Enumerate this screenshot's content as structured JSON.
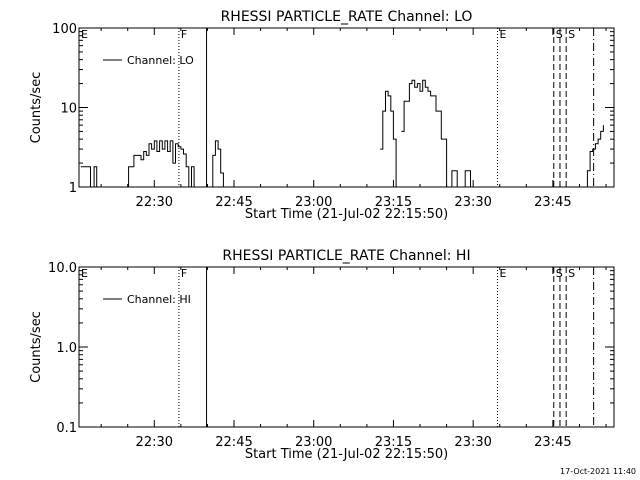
{
  "footer_stamp": "17-Oct-2021 11:40",
  "colors": {
    "background": "#ffffff",
    "ink": "#000000"
  },
  "chart_data": [
    {
      "type": "line",
      "title": "RHESSI PARTICLE_RATE Channel: LO",
      "xlabel": "Start Time (21-Jul-02 22:15:50)",
      "ylabel": "Counts/sec",
      "yscale": "log",
      "ylim": [
        1,
        100
      ],
      "xlim": [
        "22:15:50",
        "23:56:30"
      ],
      "xticks": [
        "22:30",
        "22:45",
        "23:00",
        "23:15",
        "23:30",
        "23:45"
      ],
      "yticks": [
        "1",
        "10",
        "100"
      ],
      "legend": {
        "position": "top-left",
        "label": "Channel: LO"
      },
      "series": [
        {
          "name": "Channel: LO",
          "x": [
            "22:15:50",
            "22:16:10",
            "22:17:00",
            "22:17:40",
            "22:18:00",
            "22:18:40",
            "22:19:10",
            "22:20:00",
            "22:22:30",
            "22:23:10",
            "22:24:00",
            "22:24:40",
            "22:25:10",
            "22:26:10",
            "22:27:30",
            "22:28:00",
            "22:28:30",
            "22:29:00",
            "22:29:30",
            "22:30:00",
            "22:30:30",
            "22:31:00",
            "22:31:30",
            "22:32:00",
            "22:32:30",
            "22:33:00",
            "22:33:30",
            "22:34:00",
            "22:34:30",
            "22:35:00",
            "22:35:30",
            "22:36:00",
            "22:36:30",
            "22:37:00",
            "22:37:30",
            "22:38:00",
            "22:38:30",
            "22:39:00",
            "22:40:00",
            "22:40:30",
            "22:41:00",
            "22:41:30",
            "22:42:00",
            "22:42:30",
            "22:43:00",
            "22:43:20",
            "23:12:00",
            "23:12:30",
            "23:13:00",
            "23:13:30",
            "23:14:00",
            "23:14:30",
            "23:15:00",
            "23:15:30",
            "23:16:00",
            "23:16:30",
            "23:17:00",
            "23:18:00",
            "23:18:30",
            "23:19:00",
            "23:19:30",
            "23:20:00",
            "23:20:30",
            "23:21:00",
            "23:21:30",
            "23:22:00",
            "23:23:00",
            "23:24:00",
            "23:25:00",
            "23:26:00",
            "23:27:00",
            "23:27:30",
            "23:28:00",
            "23:28:30",
            "23:29:30",
            "23:30:00",
            "23:50:30",
            "23:51:00",
            "23:51:30",
            "23:52:00",
            "23:52:30",
            "23:53:00",
            "23:53:30",
            "23:54:00",
            "23:54:30"
          ],
          "y": [
            null,
            1.8,
            1.8,
            1.8,
            1,
            1.8,
            1,
            null,
            1,
            null,
            null,
            1,
            1.8,
            2.5,
            2.2,
            2.8,
            2.5,
            3.5,
            3.0,
            3.8,
            2.8,
            3.8,
            3.0,
            3.8,
            2.8,
            3.8,
            2.0,
            3.5,
            3.2,
            3.0,
            2.6,
            1.8,
            1,
            1.8,
            1,
            null,
            null,
            null,
            null,
            1,
            2.5,
            3.8,
            3.0,
            1.5,
            1,
            null,
            null,
            3,
            9,
            16,
            14,
            9,
            4,
            1,
            null,
            5,
            12,
            20,
            22,
            18,
            20,
            16,
            22,
            18,
            16,
            14,
            9,
            4,
            1,
            1.6,
            1,
            null,
            1,
            1.6,
            1,
            null,
            null,
            1,
            1.6,
            2.8,
            3.0,
            3.5,
            4,
            5,
            6
          ]
        }
      ],
      "markers": [
        {
          "label": "E",
          "time": "22:15:50",
          "style": "dotted"
        },
        {
          "label": "F",
          "time": "22:34:38",
          "style": "dotted"
        },
        {
          "label": "",
          "time": "22:39:50",
          "style": "solid"
        },
        {
          "label": "E",
          "time": "23:34:35",
          "style": "dotted"
        },
        {
          "label": "S",
          "time": "23:45:10",
          "style": "dashed"
        },
        {
          "label": "",
          "time": "23:46:20",
          "style": "dashed"
        },
        {
          "label": "S",
          "time": "23:47:30",
          "style": "dashed"
        },
        {
          "label": "",
          "time": "23:52:40",
          "style": "dashdot"
        }
      ]
    },
    {
      "type": "line",
      "title": "RHESSI PARTICLE_RATE Channel: HI",
      "xlabel": "Start Time (21-Jul-02 22:15:50)",
      "ylabel": "Counts/sec",
      "yscale": "log",
      "ylim": [
        0.1,
        10
      ],
      "xlim": [
        "22:15:50",
        "23:56:30"
      ],
      "xticks": [
        "22:30",
        "22:45",
        "23:00",
        "23:15",
        "23:30",
        "23:45"
      ],
      "yticks": [
        "0.1",
        "1.0",
        "10.0"
      ],
      "legend": {
        "position": "top-left",
        "label": "Channel: HI"
      },
      "series": [
        {
          "name": "Channel: HI",
          "x": [],
          "y": []
        }
      ],
      "markers": [
        {
          "label": "E",
          "time": "22:15:50",
          "style": "dotted"
        },
        {
          "label": "F",
          "time": "22:34:38",
          "style": "dotted"
        },
        {
          "label": "",
          "time": "22:39:50",
          "style": "solid"
        },
        {
          "label": "E",
          "time": "23:34:35",
          "style": "dotted"
        },
        {
          "label": "S",
          "time": "23:45:10",
          "style": "dashed"
        },
        {
          "label": "",
          "time": "23:46:20",
          "style": "dashed"
        },
        {
          "label": "S",
          "time": "23:47:30",
          "style": "dashed"
        },
        {
          "label": "",
          "time": "23:52:40",
          "style": "dashdot"
        }
      ]
    }
  ]
}
